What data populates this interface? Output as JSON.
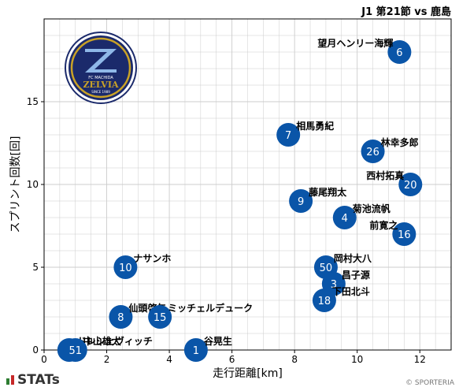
{
  "header": {
    "match": "J1 第21節 vs 鹿島"
  },
  "team_logo": {
    "text_top": "FC MACHIDA",
    "text_main": "ZELVIA",
    "text_bottom": "SINCE 1989"
  },
  "footer": {
    "brand": "STATs",
    "copyright": "© SPORTERIA"
  },
  "colors": {
    "point": "#0a55a8",
    "grid": "#cccccc",
    "logo_navy": "#1b2a6b",
    "logo_gold": "#c9a227"
  },
  "chart_data": {
    "type": "scatter",
    "xlabel": "走行距離[km]",
    "ylabel": "スプリント回数[回]",
    "xlim": [
      0,
      13
    ],
    "ylim": [
      0,
      20
    ],
    "xticks": [
      0,
      2,
      4,
      6,
      8,
      10,
      12
    ],
    "yticks": [
      0,
      5,
      10,
      15
    ],
    "grid": true,
    "points": [
      {
        "number": "6",
        "name": "望月ヘンリー海輝",
        "x": 11.35,
        "y": 18
      },
      {
        "number": "7",
        "name": "相馬勇紀",
        "x": 7.8,
        "y": 13
      },
      {
        "number": "26",
        "name": "林幸多郎",
        "x": 10.5,
        "y": 12
      },
      {
        "number": "20",
        "name": "西村拓真",
        "x": 11.7,
        "y": 10
      },
      {
        "number": "9",
        "name": "藤尾翔太",
        "x": 8.2,
        "y": 9
      },
      {
        "number": "4",
        "name": "菊池流帆",
        "x": 9.6,
        "y": 8
      },
      {
        "number": "16",
        "name": "前寛之",
        "x": 11.5,
        "y": 7
      },
      {
        "number": "10",
        "name": "ナサンホ",
        "x": 2.6,
        "y": 5
      },
      {
        "number": "50",
        "name": "岡村大八",
        "x": 9.0,
        "y": 5
      },
      {
        "number": "3",
        "name": "昌子源",
        "x": 9.25,
        "y": 4
      },
      {
        "number": "18",
        "name": "下田北斗",
        "x": 8.95,
        "y": 3
      },
      {
        "number": "8",
        "name": "仙頭啓矢",
        "x": 2.45,
        "y": 2
      },
      {
        "number": "15",
        "name": "ミッチェルデューク",
        "x": 3.7,
        "y": 2
      },
      {
        "number": "1",
        "name": "谷晃生",
        "x": 4.85,
        "y": 0
      },
      {
        "number": "5",
        "name": "ドレシェヴィッチ",
        "x": 0.8,
        "y": 0
      },
      {
        "number": "51",
        "name": "中山雄太",
        "x": 1.0,
        "y": 0
      }
    ]
  }
}
